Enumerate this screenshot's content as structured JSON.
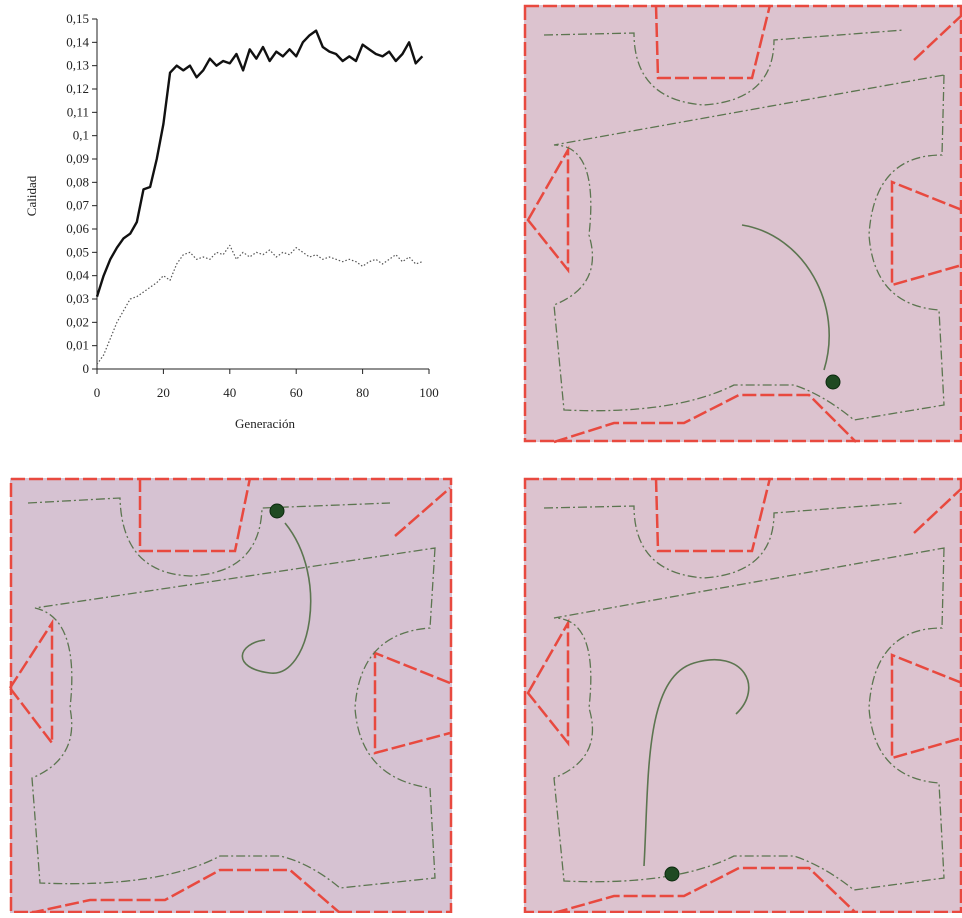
{
  "chart_data": {
    "type": "line",
    "x_label": "Generación",
    "y_label": "Calidad",
    "x": [
      0,
      2,
      4,
      6,
      8,
      10,
      12,
      14,
      16,
      18,
      20,
      22,
      24,
      26,
      28,
      30,
      32,
      34,
      36,
      38,
      40,
      42,
      44,
      46,
      48,
      50,
      52,
      54,
      56,
      58,
      60,
      62,
      64,
      66,
      68,
      70,
      72,
      74,
      76,
      78,
      80,
      82,
      84,
      86,
      88,
      90,
      92,
      94,
      96,
      98
    ],
    "series": [
      {
        "color": "#111111",
        "line_style": "solid",
        "values": [
          0.031,
          0.04,
          0.047,
          0.052,
          0.056,
          0.058,
          0.063,
          0.077,
          0.078,
          0.09,
          0.105,
          0.127,
          0.13,
          0.128,
          0.13,
          0.125,
          0.128,
          0.133,
          0.13,
          0.132,
          0.131,
          0.135,
          0.128,
          0.137,
          0.133,
          0.138,
          0.132,
          0.136,
          0.134,
          0.137,
          0.134,
          0.14,
          0.143,
          0.145,
          0.138,
          0.136,
          0.135,
          0.132,
          0.134,
          0.132,
          0.139,
          0.137,
          0.135,
          0.134,
          0.136,
          0.132,
          0.135,
          0.14,
          0.131,
          0.134
        ]
      },
      {
        "color": "#555555",
        "line_style": "dotted",
        "values": [
          0.002,
          0.006,
          0.013,
          0.02,
          0.025,
          0.03,
          0.031,
          0.033,
          0.035,
          0.037,
          0.04,
          0.038,
          0.045,
          0.049,
          0.05,
          0.047,
          0.048,
          0.047,
          0.05,
          0.049,
          0.053,
          0.047,
          0.05,
          0.048,
          0.05,
          0.049,
          0.051,
          0.048,
          0.05,
          0.049,
          0.052,
          0.05,
          0.048,
          0.049,
          0.047,
          0.048,
          0.047,
          0.046,
          0.047,
          0.046,
          0.044,
          0.046,
          0.047,
          0.045,
          0.047,
          0.049,
          0.046,
          0.048,
          0.045,
          0.046
        ]
      }
    ],
    "xlim": [
      0,
      100
    ],
    "xticks": [
      0,
      20,
      40,
      60,
      80,
      100
    ],
    "ylim": [
      0,
      0.15
    ],
    "yticks": [
      {
        "value": 0,
        "label": "0"
      },
      {
        "value": 0.01,
        "label": "0,01"
      },
      {
        "value": 0.02,
        "label": "0,02"
      },
      {
        "value": 0.03,
        "label": "0,03"
      },
      {
        "value": 0.04,
        "label": "0,04"
      },
      {
        "value": 0.05,
        "label": "0,05"
      },
      {
        "value": 0.06,
        "label": "0,06"
      },
      {
        "value": 0.07,
        "label": "0,07"
      },
      {
        "value": 0.08,
        "label": "0,08"
      },
      {
        "value": 0.09,
        "label": "0,09"
      },
      {
        "value": 0.1,
        "label": "0,1"
      },
      {
        "value": 0.11,
        "label": "0,11"
      },
      {
        "value": 0.12,
        "label": "0,12"
      },
      {
        "value": 0.13,
        "label": "0,13"
      },
      {
        "value": 0.14,
        "label": "0,14"
      },
      {
        "value": 0.15,
        "label": "0,15"
      }
    ],
    "grid": false
  }
}
